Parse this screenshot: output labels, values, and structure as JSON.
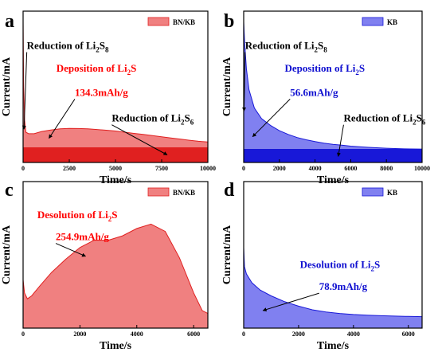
{
  "chart_data": [
    {
      "panel": "a",
      "type": "area",
      "color": "#f08080",
      "line_color": "#e02020",
      "legend": "BN/KB",
      "xlabel": "Time/s",
      "ylabel": "Current/mA",
      "xlim": [
        0,
        10000
      ],
      "ylim": [
        0,
        1
      ],
      "xticks": [
        "0",
        "2500",
        "5000",
        "7500",
        "10000"
      ],
      "xtick_values": [
        0,
        2500,
        5000,
        7500,
        10000
      ],
      "fill_baseline": 0.1,
      "x": [
        0,
        30,
        80,
        150,
        300,
        600,
        1000,
        1500,
        2000,
        2500,
        3000,
        3500,
        4000,
        4500,
        5000,
        5500,
        6000,
        6500,
        7000,
        7500,
        8000,
        8500,
        9000,
        9500,
        10000
      ],
      "y": [
        0.93,
        0.5,
        0.28,
        0.2,
        0.19,
        0.19,
        0.205,
        0.215,
        0.222,
        0.225,
        0.224,
        0.222,
        0.218,
        0.213,
        0.208,
        0.2,
        0.192,
        0.185,
        0.178,
        0.17,
        0.162,
        0.155,
        0.147,
        0.14,
        0.135
      ],
      "annotations": [
        {
          "text": "Reduction of Li",
          "sub": "2",
          "after": "S",
          "sub2": "8",
          "style": "black",
          "x": 200,
          "y": 0.75,
          "arrow_to": [
            50,
            0.22
          ]
        },
        {
          "text": "Deposition of Li",
          "sub": "2",
          "after": "S",
          "sub2": "",
          "style": "red",
          "x": 1800,
          "y": 0.6,
          "arrow_to": null
        },
        {
          "text": "134.3mAh/g",
          "sub": "",
          "after": "",
          "sub2": "",
          "style": "red",
          "x": 2800,
          "y": 0.44,
          "arrow_to": [
            1400,
            0.16
          ]
        },
        {
          "text": "Reduction of Li",
          "sub": "2",
          "after": "S",
          "sub2": "6",
          "style": "black",
          "x": 4800,
          "y": 0.27,
          "arrow_to": [
            7800,
            0.05
          ]
        }
      ]
    },
    {
      "panel": "b",
      "type": "area",
      "color": "#8080f0",
      "line_color": "#1818d8",
      "legend": "KB",
      "xlabel": "Time/s",
      "ylabel": "Current/mA",
      "xlim": [
        0,
        10000
      ],
      "ylim": [
        0,
        1
      ],
      "xticks": [
        "0",
        "2000",
        "4000",
        "6000",
        "8000",
        "10000"
      ],
      "xtick_values": [
        0,
        2000,
        4000,
        6000,
        8000,
        10000
      ],
      "fill_baseline": 0.09,
      "x": [
        0,
        50,
        150,
        300,
        600,
        1000,
        1500,
        2000,
        2500,
        3000,
        3500,
        4000,
        4500,
        5000,
        5500,
        6000,
        7000,
        8000,
        9000,
        10000
      ],
      "y": [
        0.93,
        0.8,
        0.62,
        0.48,
        0.36,
        0.29,
        0.245,
        0.21,
        0.185,
        0.165,
        0.15,
        0.138,
        0.128,
        0.12,
        0.114,
        0.108,
        0.1,
        0.094,
        0.09,
        0.088
      ],
      "annotations": [
        {
          "text": "Reduction of Li",
          "sub": "2",
          "after": "S",
          "sub2": "8",
          "style": "black",
          "x": 80,
          "y": 0.75,
          "arrow_to": [
            20,
            0.34
          ]
        },
        {
          "text": "Deposition of Li",
          "sub": "2",
          "after": "S",
          "sub2": "",
          "style": "blue",
          "x": 2300,
          "y": 0.6,
          "arrow_to": null
        },
        {
          "text": "56.6mAh/g",
          "sub": "",
          "after": "",
          "sub2": "",
          "style": "blue",
          "x": 2600,
          "y": 0.44,
          "arrow_to": [
            500,
            0.17
          ]
        },
        {
          "text": "Reduction of Li",
          "sub": "2",
          "after": "S",
          "sub2": "6",
          "style": "black",
          "x": 5600,
          "y": 0.27,
          "arrow_to": [
            5300,
            0.04
          ]
        }
      ]
    },
    {
      "panel": "c",
      "type": "area",
      "color": "#f08080",
      "line_color": "#e02020",
      "legend": "BN/KB",
      "xlabel": "Time/s",
      "ylabel": "Current/mA",
      "xlim": [
        0,
        6500
      ],
      "ylim": [
        0,
        1
      ],
      "xticks": [
        "0",
        "2000",
        "4000",
        "6000"
      ],
      "xtick_values": [
        0,
        2000,
        4000,
        6000
      ],
      "fill_baseline": 0,
      "x": [
        0,
        50,
        150,
        300,
        600,
        1000,
        1500,
        2000,
        2500,
        3000,
        3500,
        4000,
        4500,
        5000,
        5500,
        6000,
        6300,
        6500
      ],
      "y": [
        0.33,
        0.24,
        0.2,
        0.22,
        0.29,
        0.38,
        0.47,
        0.55,
        0.6,
        0.6,
        0.63,
        0.68,
        0.71,
        0.66,
        0.48,
        0.24,
        0.12,
        0.1
      ],
      "annotations": [
        {
          "text": "Desolution of Li",
          "sub": "2",
          "after": "S",
          "sub2": "",
          "style": "red",
          "x": 500,
          "y": 0.75,
          "arrow_to": null
        },
        {
          "text": "254.9mAh/g",
          "sub": "",
          "after": "",
          "sub2": "",
          "style": "red",
          "x": 1150,
          "y": 0.6,
          "arrow_to": [
            2200,
            0.49
          ]
        }
      ]
    },
    {
      "panel": "d",
      "type": "area",
      "color": "#8080f0",
      "line_color": "#1818d8",
      "legend": "KB",
      "xlabel": "Time/s",
      "ylabel": "Current/mA",
      "xlim": [
        0,
        6500
      ],
      "ylim": [
        0,
        1
      ],
      "xticks": [
        "0",
        "2000",
        "4000",
        "6000"
      ],
      "xtick_values": [
        0,
        2000,
        4000,
        6000
      ],
      "fill_baseline": 0,
      "x": [
        0,
        30,
        100,
        300,
        600,
        1000,
        1500,
        2000,
        2500,
        3000,
        3500,
        4000,
        4500,
        5000,
        5500,
        6000,
        6500
      ],
      "y": [
        0.55,
        0.42,
        0.37,
        0.31,
        0.26,
        0.22,
        0.18,
        0.15,
        0.125,
        0.11,
        0.1,
        0.093,
        0.088,
        0.085,
        0.082,
        0.08,
        0.078
      ],
      "annotations": [
        {
          "text": "Desolution of Li",
          "sub": "2",
          "after": "S",
          "sub2": "",
          "style": "blue",
          "x": 2050,
          "y": 0.41,
          "arrow_to": null
        },
        {
          "text": "78.9mAh/g",
          "sub": "",
          "after": "",
          "sub2": "",
          "style": "blue",
          "x": 2750,
          "y": 0.26,
          "arrow_to": [
            700,
            0.12
          ]
        }
      ]
    }
  ]
}
